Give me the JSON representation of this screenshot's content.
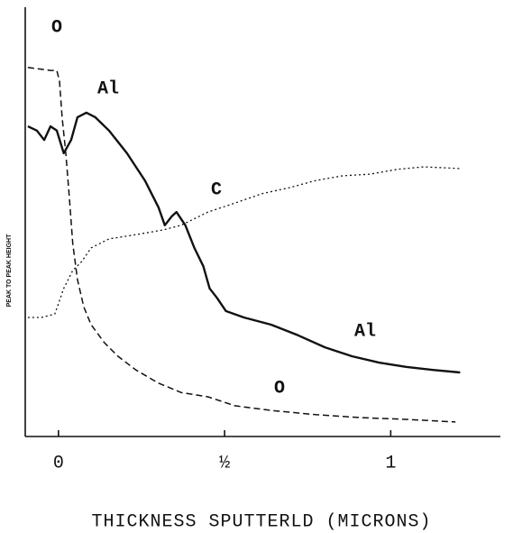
{
  "chart_data": {
    "type": "line",
    "ylabel": "PEAK TO PEAK HEIGHT",
    "xlabel": "THICKNESS SPUTTERLD (MICRONS)",
    "xlim": [
      -0.1,
      1.33
    ],
    "ylim": [
      0,
      100
    ],
    "xticks": [
      0,
      {
        "value": 0.5,
        "label": "½"
      },
      1
    ],
    "series": [
      {
        "name": "O",
        "color": "#111",
        "x": [
          -0.092,
          -0.024,
          -0.005,
          0.003,
          0.011,
          0.022,
          0.033,
          0.043,
          0.057,
          0.076,
          0.098,
          0.138,
          0.179,
          0.233,
          0.301,
          0.369,
          0.45,
          0.531,
          0.64,
          0.775,
          0.911,
          1.046,
          1.195
        ],
        "values": [
          86.3,
          85.6,
          85.6,
          83.1,
          74.6,
          66.2,
          55.6,
          45.0,
          36.6,
          30.2,
          26.0,
          21.8,
          18.6,
          15.4,
          12.3,
          10.1,
          9.1,
          7.0,
          5.9,
          4.9,
          4.2,
          3.8,
          3.2
        ]
      },
      {
        "name": "Al",
        "color": "#111",
        "x": [
          -0.092,
          -0.065,
          -0.043,
          -0.024,
          -0.005,
          0.016,
          0.038,
          0.057,
          0.084,
          0.111,
          0.152,
          0.206,
          0.26,
          0.301,
          0.32,
          0.341,
          0.355,
          0.382,
          0.409,
          0.436,
          0.455,
          0.477,
          0.504,
          0.558,
          0.64,
          0.721,
          0.802,
          0.883,
          0.965,
          1.046,
          1.127,
          1.209
        ],
        "values": [
          72.5,
          71.5,
          69.3,
          72.5,
          71.5,
          66.2,
          69.3,
          74.6,
          75.7,
          74.6,
          71.5,
          66.2,
          59.8,
          53.5,
          49.3,
          51.4,
          52.4,
          49.3,
          44.0,
          39.7,
          34.5,
          32.3,
          29.2,
          27.7,
          26.0,
          23.5,
          20.7,
          18.6,
          17.1,
          16.1,
          15.4,
          14.8
        ]
      },
      {
        "name": "C",
        "color": "#111",
        "x": [
          -0.092,
          -0.051,
          -0.011,
          0.016,
          0.043,
          0.07,
          0.098,
          0.152,
          0.233,
          0.314,
          0.369,
          0.45,
          0.531,
          0.612,
          0.694,
          0.775,
          0.856,
          0.938,
          1.019,
          1.1,
          1.209
        ],
        "values": [
          27.7,
          27.7,
          28.5,
          34.5,
          38.7,
          40.8,
          44.0,
          46.1,
          47.1,
          48.2,
          49.3,
          52.4,
          54.5,
          56.7,
          58.1,
          59.8,
          60.9,
          61.3,
          62.4,
          63.0,
          62.6
        ]
      }
    ],
    "annotations": [
      "Al",
      "O"
    ]
  }
}
